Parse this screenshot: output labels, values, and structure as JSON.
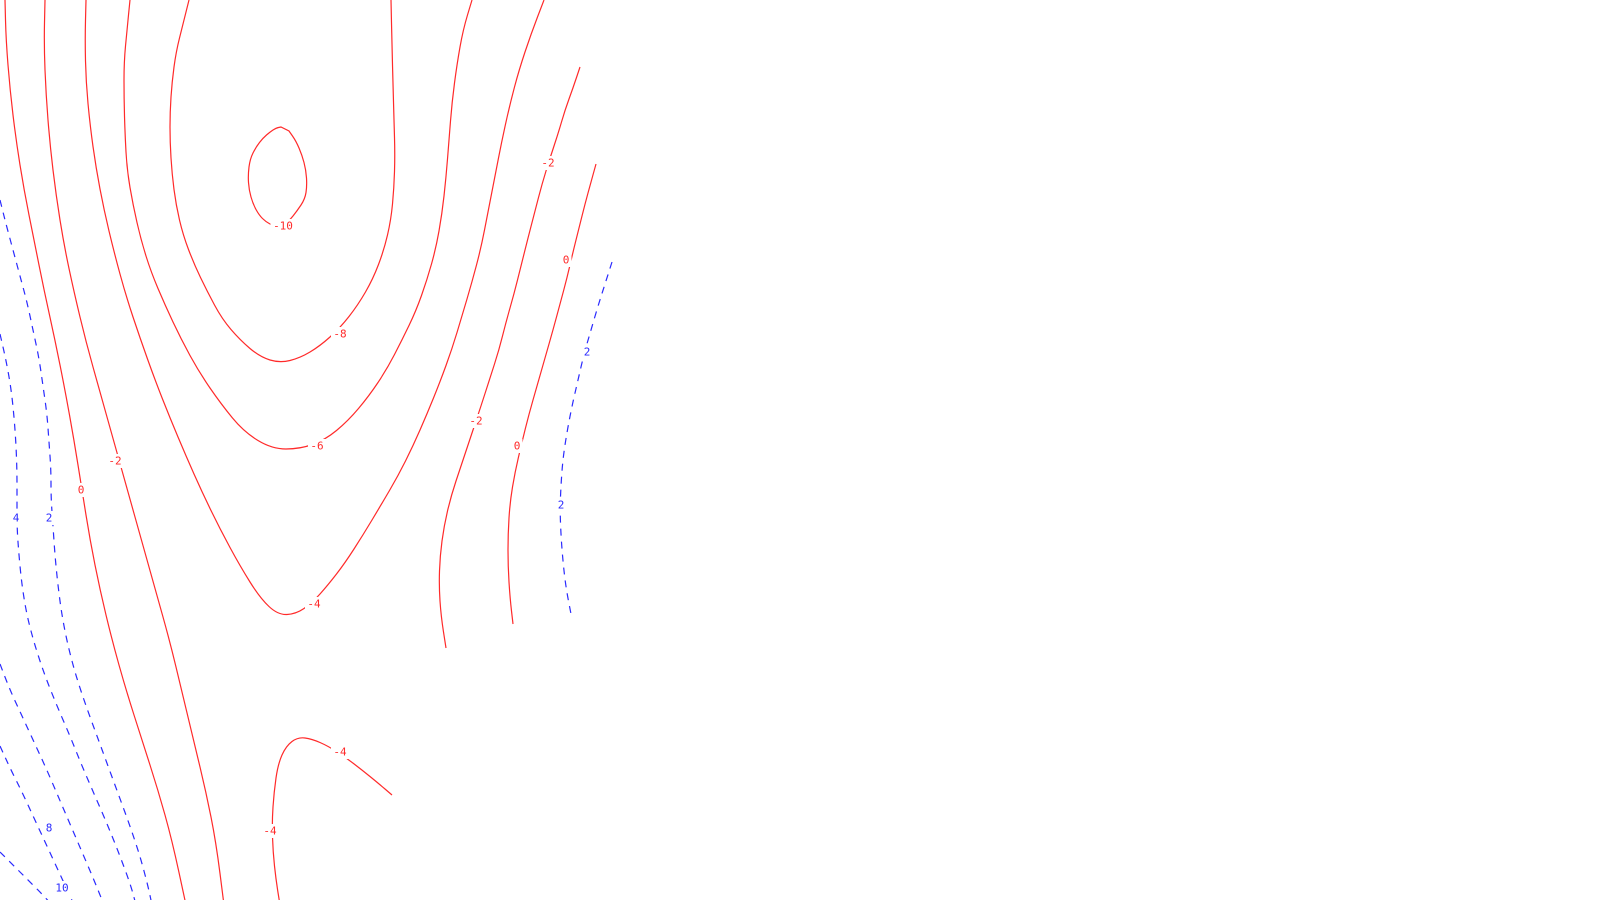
{
  "chart_data": {
    "type": "contour",
    "title": "",
    "xlabel": "",
    "ylabel": "",
    "grid": false,
    "legend": "none",
    "colors": {
      "negative": "#ff2a2a",
      "positive": "#2a2aff",
      "background": "#ffffff"
    },
    "line_styles": {
      "negative": "solid",
      "positive": "dashed"
    },
    "levels": [
      -10,
      -8,
      -6,
      -4,
      -2,
      0,
      2,
      4,
      6,
      8,
      10
    ],
    "labels": [
      {
        "id": "l-10",
        "text": "-10",
        "level": -10,
        "sign": "neg"
      },
      {
        "id": "l-8",
        "text": "-8",
        "level": -8,
        "sign": "neg"
      },
      {
        "id": "l-6",
        "text": "-6",
        "level": -6,
        "sign": "neg"
      },
      {
        "id": "l-4a",
        "text": "-4",
        "level": -4,
        "sign": "neg"
      },
      {
        "id": "l-4b",
        "text": "-4",
        "level": -4,
        "sign": "neg"
      },
      {
        "id": "l-4c",
        "text": "-4",
        "level": -4,
        "sign": "neg"
      },
      {
        "id": "l-2a",
        "text": "-2",
        "level": -2,
        "sign": "neg"
      },
      {
        "id": "l-2b",
        "text": "-2",
        "level": -2,
        "sign": "neg"
      },
      {
        "id": "l-2c",
        "text": "-2",
        "level": -2,
        "sign": "neg"
      },
      {
        "id": "l0a",
        "text": "0",
        "level": 0,
        "sign": "neg"
      },
      {
        "id": "l0b",
        "text": "0",
        "level": 0,
        "sign": "neg"
      },
      {
        "id": "l0c",
        "text": "0",
        "level": 0,
        "sign": "neg"
      },
      {
        "id": "l2a",
        "text": "2",
        "level": 2,
        "sign": "pos"
      },
      {
        "id": "l2b",
        "text": "2",
        "level": 2,
        "sign": "pos"
      },
      {
        "id": "l2c",
        "text": "2",
        "level": 2,
        "sign": "pos"
      },
      {
        "id": "l4a",
        "text": "4",
        "level": 4,
        "sign": "pos"
      },
      {
        "id": "l8a",
        "text": "8",
        "level": 8,
        "sign": "pos"
      },
      {
        "id": "l10a",
        "text": "10",
        "level": 10,
        "sign": "pos"
      }
    ]
  }
}
